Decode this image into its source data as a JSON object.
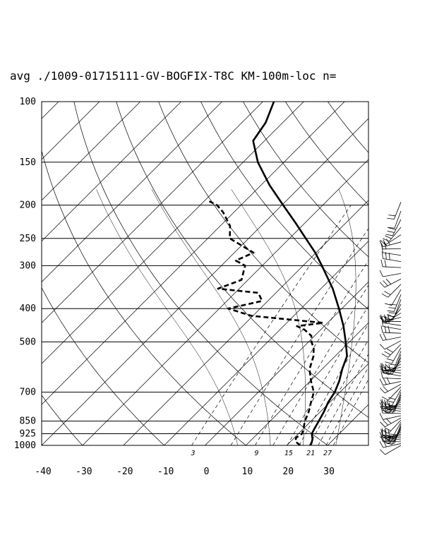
{
  "title": "avg ./1009-01715111-GV-BOGFIX-T8C KM-100m-loc n=",
  "chart_data": {
    "type": "line",
    "subtype": "skew-t log-p",
    "p_levels": [
      100,
      150,
      200,
      250,
      300,
      400,
      500,
      700,
      850,
      925,
      1000
    ],
    "p_labels": [
      "100",
      "150",
      "200",
      "250",
      "300",
      "400",
      "500",
      "700",
      "850",
      "925",
      "1000"
    ],
    "t_ticks": [
      -40,
      -30,
      -20,
      -10,
      0,
      10,
      20,
      30
    ],
    "t_labels": [
      "-40",
      "-30",
      "-20",
      "-10",
      "0",
      "10",
      "20",
      "30"
    ],
    "mixing_ratio_labels": [
      "3",
      "9",
      "15",
      "21",
      "27"
    ],
    "xlim": [
      -40,
      40
    ],
    "ylim": [
      1000,
      100
    ],
    "grid": true,
    "series": [
      {
        "style": "solid",
        "points": [
          [
            1000,
            25.8
          ],
          [
            985,
            25.5
          ],
          [
            960,
            24.8
          ],
          [
            925,
            23.3
          ],
          [
            900,
            22.8
          ],
          [
            850,
            21.9
          ],
          [
            800,
            20.9
          ],
          [
            750,
            19.6
          ],
          [
            700,
            18.7
          ],
          [
            650,
            17.1
          ],
          [
            600,
            14.9
          ],
          [
            550,
            12.9
          ],
          [
            500,
            9.1
          ],
          [
            450,
            4.7
          ],
          [
            400,
            -0.7
          ],
          [
            350,
            -7.1
          ],
          [
            300,
            -15.4
          ],
          [
            275,
            -20.2
          ],
          [
            250,
            -26.0
          ],
          [
            225,
            -32.4
          ],
          [
            200,
            -39.7
          ],
          [
            175,
            -47.9
          ],
          [
            150,
            -56.4
          ],
          [
            130,
            -62.8
          ],
          [
            115,
            -64.2
          ],
          [
            100,
            -67.3
          ]
        ]
      },
      {
        "style": "dashed",
        "points": [
          [
            1000,
            23.3
          ],
          [
            975,
            21.2
          ],
          [
            950,
            20.4
          ],
          [
            925,
            20.9
          ],
          [
            900,
            20.2
          ],
          [
            850,
            18.5
          ],
          [
            800,
            17.2
          ],
          [
            750,
            15.4
          ],
          [
            700,
            13.6
          ],
          [
            650,
            10.2
          ],
          [
            600,
            6.9
          ],
          [
            550,
            4.7
          ],
          [
            520,
            2.7
          ],
          [
            500,
            0.7
          ],
          [
            480,
            -0.8
          ],
          [
            460,
            -4.1
          ],
          [
            450,
            -6.7
          ],
          [
            440,
            -1.1
          ],
          [
            420,
            -20.3
          ],
          [
            400,
            -27.8
          ],
          [
            380,
            -21.4
          ],
          [
            360,
            -24.3
          ],
          [
            350,
            -35.2
          ],
          [
            330,
            -31.6
          ],
          [
            300,
            -34.2
          ],
          [
            290,
            -37.7
          ],
          [
            275,
            -35.3
          ],
          [
            250,
            -44.6
          ],
          [
            230,
            -47.6
          ],
          [
            210,
            -52.6
          ],
          [
            200,
            -55.9
          ],
          [
            195,
            -58.7
          ]
        ]
      }
    ]
  }
}
